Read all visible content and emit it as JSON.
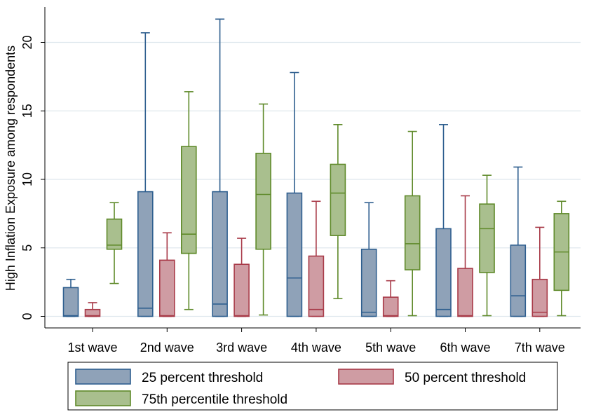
{
  "chart_data": {
    "type": "box",
    "title": "",
    "xlabel": "",
    "ylabel": "High Inflation Exposure among respondents",
    "ylim": [
      0,
      22
    ],
    "yticks": [
      0,
      5,
      10,
      15,
      20
    ],
    "grid": true,
    "legend_position": "bottom",
    "categories": [
      "1st wave",
      "2nd wave",
      "3rd wave",
      "4th wave",
      "5th wave",
      "6th wave",
      "7th wave"
    ],
    "series": [
      {
        "name": "25 percent threshold",
        "fill": "#8fa2b8",
        "stroke": "#2f5f8f",
        "boxes": [
          {
            "min": 0,
            "q1": 0,
            "median": 0.05,
            "q3": 2.1,
            "max": 2.7
          },
          {
            "min": 0,
            "q1": 0,
            "median": 0.6,
            "q3": 9.1,
            "max": 20.7
          },
          {
            "min": 0,
            "q1": 0,
            "median": 0.9,
            "q3": 9.1,
            "max": 21.7
          },
          {
            "min": 0,
            "q1": 0,
            "median": 2.8,
            "q3": 9.0,
            "max": 17.8
          },
          {
            "min": 0,
            "q1": 0,
            "median": 0.3,
            "q3": 4.9,
            "max": 8.3
          },
          {
            "min": 0,
            "q1": 0,
            "median": 0.5,
            "q3": 6.4,
            "max": 14.0
          },
          {
            "min": 0,
            "q1": 0,
            "median": 1.5,
            "q3": 5.2,
            "max": 10.9
          }
        ]
      },
      {
        "name": "50 percent threshold",
        "fill": "#cf9ca3",
        "stroke": "#a83a48",
        "boxes": [
          {
            "min": 0,
            "q1": 0,
            "median": 0.05,
            "q3": 0.5,
            "max": 1.0
          },
          {
            "min": 0,
            "q1": 0,
            "median": 0.05,
            "q3": 4.1,
            "max": 6.1
          },
          {
            "min": 0,
            "q1": 0,
            "median": 0.05,
            "q3": 3.8,
            "max": 5.7
          },
          {
            "min": 0,
            "q1": 0,
            "median": 0.5,
            "q3": 4.4,
            "max": 8.4
          },
          {
            "min": 0,
            "q1": 0,
            "median": 0.05,
            "q3": 1.4,
            "max": 2.6
          },
          {
            "min": 0,
            "q1": 0,
            "median": 0.05,
            "q3": 3.5,
            "max": 8.8
          },
          {
            "min": 0,
            "q1": 0,
            "median": 0.3,
            "q3": 2.7,
            "max": 6.5
          }
        ]
      },
      {
        "name": "75th percentile threshold",
        "fill": "#a9bf8e",
        "stroke": "#5f8a2a",
        "boxes": [
          {
            "min": 2.4,
            "q1": 4.9,
            "median": 5.2,
            "q3": 7.1,
            "max": 8.3
          },
          {
            "min": 0.5,
            "q1": 4.6,
            "median": 6.0,
            "q3": 12.4,
            "max": 16.4
          },
          {
            "min": 0.1,
            "q1": 4.9,
            "median": 8.9,
            "q3": 11.9,
            "max": 15.5
          },
          {
            "min": 1.3,
            "q1": 5.9,
            "median": 9.0,
            "q3": 11.1,
            "max": 14.0
          },
          {
            "min": 0.05,
            "q1": 3.4,
            "median": 5.3,
            "q3": 8.8,
            "max": 13.5
          },
          {
            "min": 0.05,
            "q1": 3.2,
            "median": 6.4,
            "q3": 8.2,
            "max": 10.3
          },
          {
            "min": 0.05,
            "q1": 1.9,
            "median": 4.7,
            "q3": 7.5,
            "max": 8.4
          }
        ]
      }
    ]
  }
}
